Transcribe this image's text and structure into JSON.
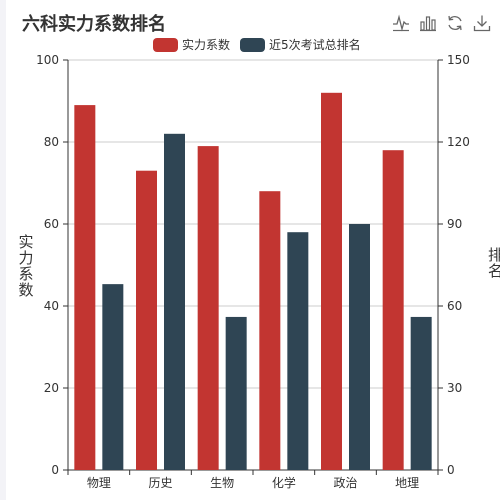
{
  "title": "六科实力系数排名",
  "toolbox": [
    {
      "name": "line-chart-icon"
    },
    {
      "name": "bar-chart-icon"
    },
    {
      "name": "restore-icon"
    },
    {
      "name": "download-icon"
    }
  ],
  "colors": {
    "series_0": "#c23531",
    "series_1": "#2f4554",
    "axis": "#333333",
    "grid": "#cccccc",
    "text": "#333333"
  },
  "chart_data": {
    "type": "bar",
    "title": "六科实力系数排名",
    "categories": [
      "物理",
      "历史",
      "生物",
      "化学",
      "政治",
      "地理"
    ],
    "series": [
      {
        "name": "实力系数",
        "axis": "left",
        "values": [
          89,
          73,
          79,
          68,
          92,
          78
        ]
      },
      {
        "name": "近5次考试总排名",
        "axis": "right",
        "values": [
          68,
          123,
          56,
          87,
          90,
          56
        ]
      }
    ],
    "ylabel": "实力系数",
    "ylabel_right": "排名",
    "ylim": [
      0,
      100
    ],
    "yticks": [
      "0",
      "20",
      "40",
      "60",
      "80",
      "100"
    ],
    "ylim_right": [
      0,
      150
    ],
    "yticks_right": [
      "0",
      "30",
      "60",
      "90",
      "120",
      "150"
    ],
    "grid": true,
    "legend_position": "top-center"
  }
}
